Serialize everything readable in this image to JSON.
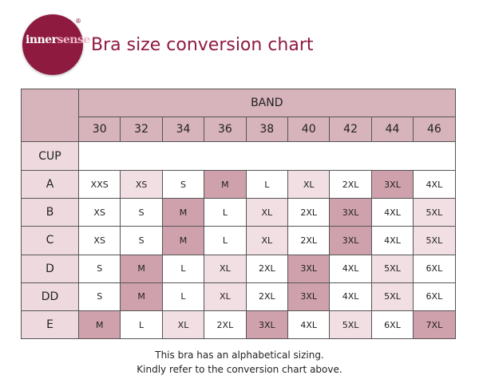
{
  "header": {
    "logo": {
      "line1": "inner",
      "line2": "sense",
      "mark": "®"
    },
    "title": "Bra size conversion chart"
  },
  "table": {
    "band_label": "BAND",
    "cup_label": "CUP",
    "bands": [
      30,
      32,
      34,
      36,
      38,
      40,
      42,
      44,
      46
    ],
    "rows": [
      {
        "cup": "A",
        "sizes": [
          "XXS",
          "XS",
          "S",
          "M",
          "L",
          "XL",
          "2XL",
          "3XL",
          "4XL"
        ]
      },
      {
        "cup": "B",
        "sizes": [
          "XS",
          "S",
          "M",
          "L",
          "XL",
          "2XL",
          "3XL",
          "4XL",
          "5XL"
        ]
      },
      {
        "cup": "C",
        "sizes": [
          "XS",
          "S",
          "M",
          "L",
          "XL",
          "2XL",
          "3XL",
          "4XL",
          "5XL"
        ]
      },
      {
        "cup": "D",
        "sizes": [
          "S",
          "M",
          "L",
          "XL",
          "2XL",
          "3XL",
          "4XL",
          "5XL",
          "6XL"
        ]
      },
      {
        "cup": "DD",
        "sizes": [
          "S",
          "M",
          "L",
          "XL",
          "2XL",
          "3XL",
          "4XL",
          "5XL",
          "6XL"
        ]
      },
      {
        "cup": "E",
        "sizes": [
          "M",
          "L",
          "XL",
          "2XL",
          "3XL",
          "4XL",
          "5XL",
          "6XL",
          "7XL"
        ]
      }
    ]
  },
  "footer": [
    "This bra has an alphabetical sizing.",
    "Kindly refer to the conversion chart above."
  ]
}
